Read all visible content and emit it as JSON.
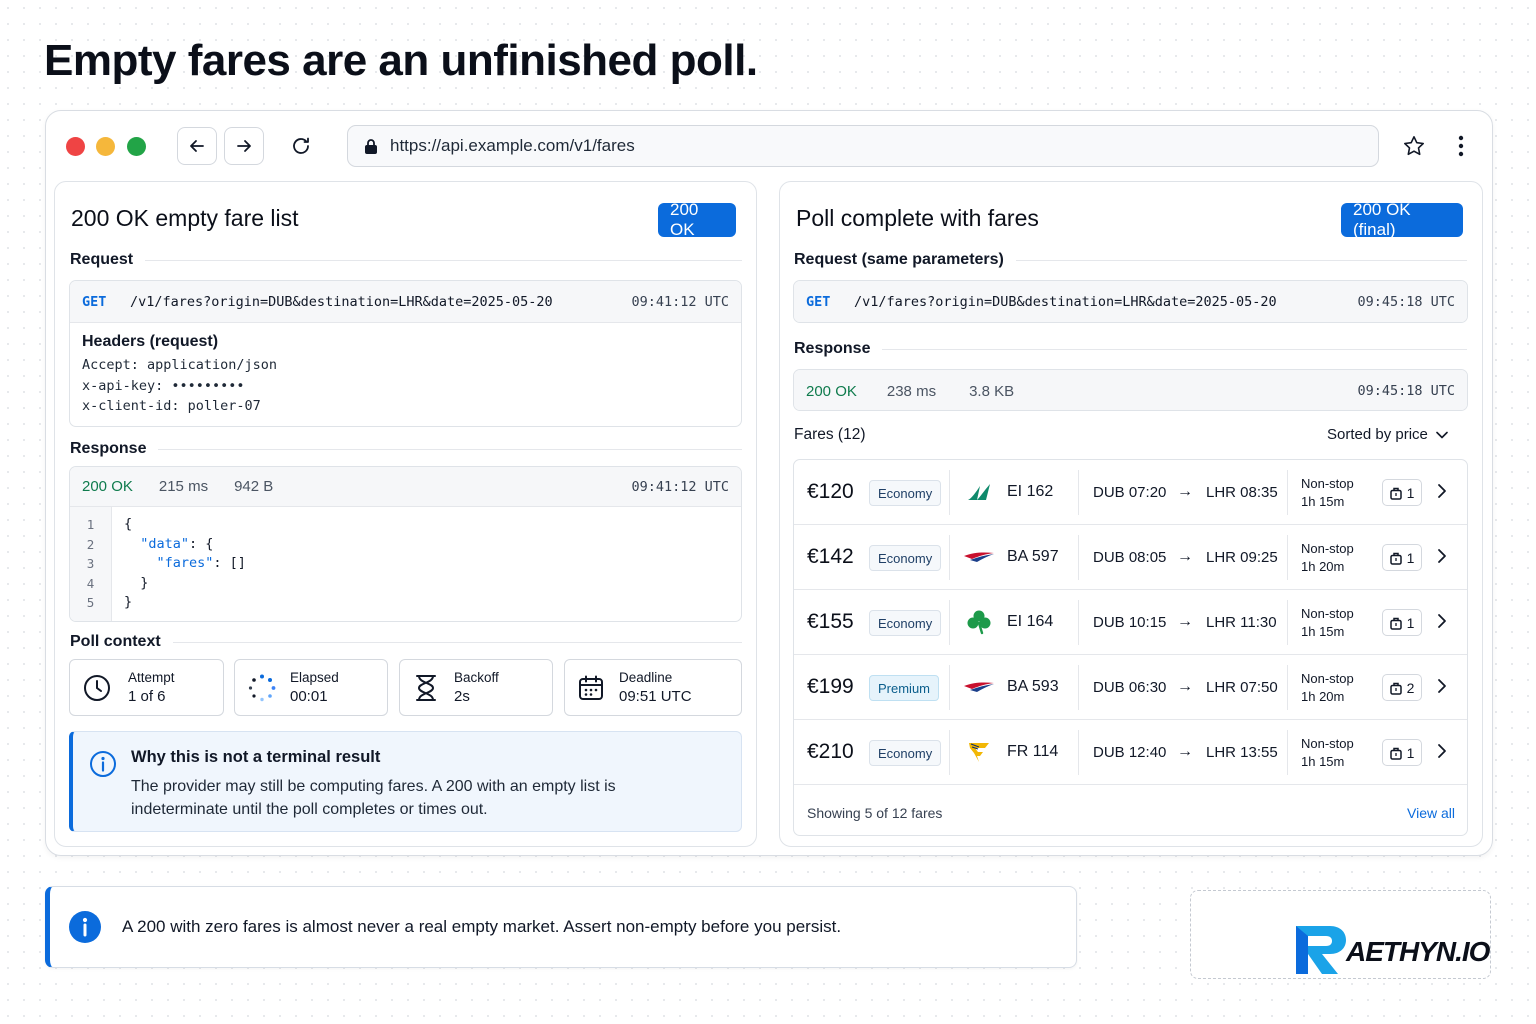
{
  "headline": "Empty fares are an unfinished poll.",
  "browser": {
    "url": "https://api.example.com/v1/fares",
    "colors": {
      "close": "#ef4444",
      "minimize": "#f5b73b",
      "maximize": "#22a447"
    }
  },
  "left": {
    "title": "200 OK empty fare list",
    "badge": "200 OK",
    "request_label": "Request",
    "request": {
      "method": "GET",
      "path": "/v1/fares?origin=DUB&destination=LHR&date=2025-05-20",
      "time": "09:41:12 UTC"
    },
    "headers_title": "Headers (request)",
    "headers": [
      "Accept: application/json",
      "x-api-key: •••••••••",
      "x-client-id: poller-07"
    ],
    "response_label": "Response",
    "response": {
      "status": "200 OK",
      "latency": "215 ms",
      "size": "942 B",
      "time": "09:41:12 UTC"
    },
    "code_lines": [
      {
        "n": "1",
        "parts": [
          {
            "t": "{",
            "c": "p"
          }
        ]
      },
      {
        "n": "2",
        "parts": [
          {
            "t": "  ",
            "c": "p"
          },
          {
            "t": "\"data\"",
            "c": "k"
          },
          {
            "t": ": {",
            "c": "p"
          }
        ]
      },
      {
        "n": "3",
        "parts": [
          {
            "t": "    ",
            "c": "p"
          },
          {
            "t": "\"fares\"",
            "c": "k"
          },
          {
            "t": ": []",
            "c": "p"
          }
        ]
      },
      {
        "n": "4",
        "parts": [
          {
            "t": "  }",
            "c": "p"
          }
        ]
      },
      {
        "n": "5",
        "parts": [
          {
            "t": "}",
            "c": "p"
          }
        ]
      }
    ],
    "poll_label": "Poll context",
    "poll": [
      {
        "label": "Attempt",
        "value": "1 of 6",
        "icon": "clock-icon"
      },
      {
        "label": "Elapsed",
        "value": "00:01",
        "icon": "spinner-icon"
      },
      {
        "label": "Backoff",
        "value": "2s",
        "icon": "hourglass-icon"
      },
      {
        "label": "Deadline",
        "value": "09:51 UTC",
        "icon": "calendar-icon"
      }
    ],
    "note": {
      "title": "Why this is not a terminal result",
      "line1": "The provider may still be computing fares. A 200 with an empty list is",
      "line2": "indeterminate until the poll completes or times out."
    }
  },
  "right": {
    "title": "Poll complete with fares",
    "badge": "200 OK (final)",
    "request_label": "Request (same parameters)",
    "request": {
      "method": "GET",
      "path": "/v1/fares?origin=DUB&destination=LHR&date=2025-05-20",
      "time": "09:45:18 UTC"
    },
    "response_label": "Response",
    "response": {
      "status": "200 OK",
      "latency": "238 ms",
      "size": "3.8 KB",
      "time": "09:45:18 UTC"
    },
    "fares_label": "Fares (12)",
    "sort_label": "Sorted by price",
    "fares": [
      {
        "price": "€120",
        "cabin": "Economy",
        "flight": "EI 162",
        "dep": "DUB 07:20",
        "arr": "LHR 08:35",
        "stops": "Non-stop",
        "duration": "1h 15m",
        "seats": "1",
        "logo": "aer-lingus-logo"
      },
      {
        "price": "€142",
        "cabin": "Economy",
        "flight": "BA 597",
        "dep": "DUB 08:05",
        "arr": "LHR 09:25",
        "stops": "Non-stop",
        "duration": "1h 20m",
        "seats": "1",
        "logo": "british-airways-logo"
      },
      {
        "price": "€155",
        "cabin": "Economy",
        "flight": "EI 164",
        "dep": "DUB 10:15",
        "arr": "LHR 11:30",
        "stops": "Non-stop",
        "duration": "1h 15m",
        "seats": "1",
        "logo": "shamrock-logo"
      },
      {
        "price": "€199",
        "cabin": "Premium",
        "flight": "BA 593",
        "dep": "DUB 06:30",
        "arr": "LHR 07:50",
        "stops": "Non-stop",
        "duration": "1h 20m",
        "seats": "2",
        "logo": "british-airways-logo"
      },
      {
        "price": "€210",
        "cabin": "Economy",
        "flight": "FR 114",
        "dep": "DUB 12:40",
        "arr": "LHR 13:55",
        "stops": "Non-stop",
        "duration": "1h 15m",
        "seats": "1",
        "logo": "ryanair-logo"
      }
    ],
    "footer": {
      "showing": "Showing 5 of 12 fares",
      "view_all": "View all"
    }
  },
  "tip": "A 200 with zero fares is almost never a real empty market. Assert non-empty before you persist.",
  "brand": "AETHYN.IO",
  "accent": "#0b6bdc",
  "ok_color": "#0f7b4d"
}
